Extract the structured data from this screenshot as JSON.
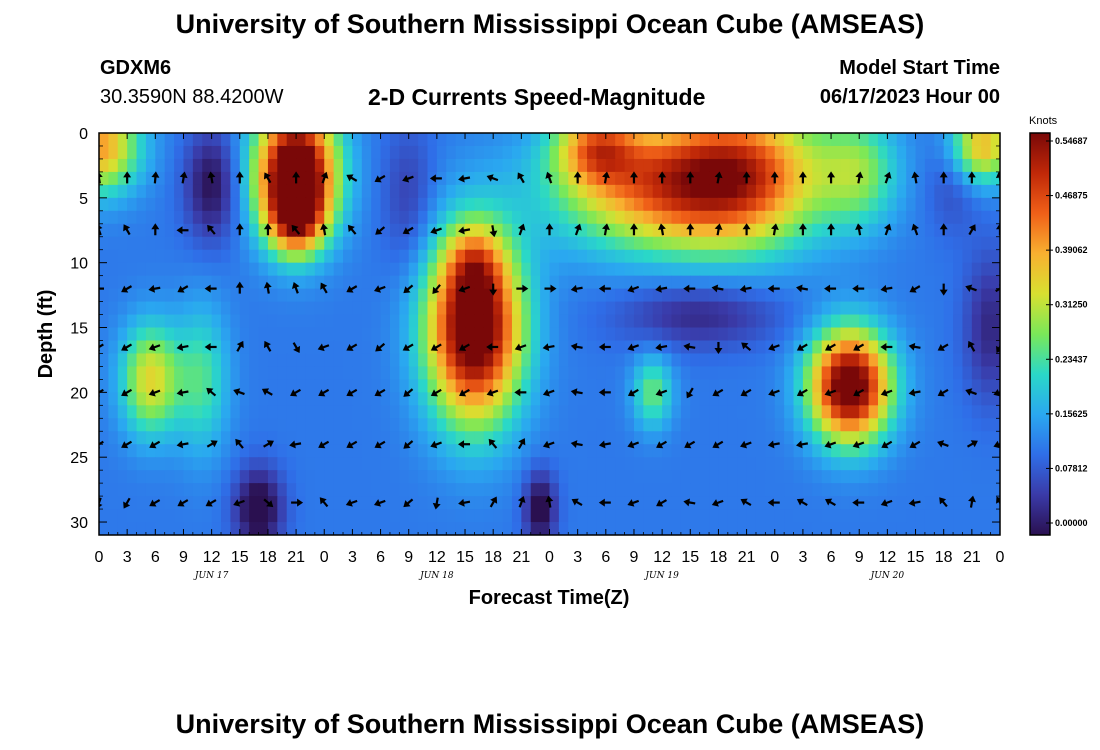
{
  "header": {
    "title": "University of Southern Mississippi Ocean Cube (AMSEAS)",
    "station": "GDXM6",
    "coordinates": "30.3590N  88.4200W",
    "subtitle": "2-D Currents Speed-Magnitude",
    "model_start_label": "Model Start Time",
    "model_start_value": "06/17/2023 Hour 00"
  },
  "footer": {
    "title": "University of Southern Mississippi Ocean Cube (AMSEAS)"
  },
  "colors": {
    "ramp": [
      "#2a1050",
      "#3a3aa8",
      "#2f6ee8",
      "#2aa8f0",
      "#2ad8c8",
      "#7ae858",
      "#d8e030",
      "#f8b030",
      "#f06018",
      "#c02808",
      "#7a0808"
    ]
  },
  "chart_data": {
    "type": "heatmap",
    "title": "2-D Currents Speed-Magnitude",
    "xlabel": "Forecast Time(Z)",
    "ylabel": "Depth (ft)",
    "units": "Knots",
    "xlim": [
      0,
      96
    ],
    "ylim": [
      31,
      0
    ],
    "x_tick_labels": [
      "0",
      "3",
      "6",
      "9",
      "12",
      "15",
      "18",
      "21",
      "0",
      "3",
      "6",
      "9",
      "12",
      "15",
      "18",
      "21",
      "0",
      "3",
      "6",
      "9",
      "12",
      "15",
      "18",
      "21",
      "0",
      "3",
      "6",
      "9",
      "12",
      "15",
      "18",
      "21",
      "0"
    ],
    "y_ticks": [
      0,
      5,
      10,
      15,
      20,
      25,
      30
    ],
    "day_labels": [
      {
        "text": "JUN 17",
        "hour": 12
      },
      {
        "text": "JUN 18",
        "hour": 36
      },
      {
        "text": "JUN 19",
        "hour": 60
      },
      {
        "text": "JUN 20",
        "hour": 84
      }
    ],
    "colorbar": {
      "label": "Knots",
      "min": 0,
      "max": 0.546875,
      "tick_labels": [
        "0.54687",
        "0.46875",
        "0.39062",
        "0.31250",
        "0.23437",
        "0.15625",
        "0.07812",
        "0.00000"
      ],
      "tick_values": [
        0.546875,
        0.46875,
        0.390625,
        0.3125,
        0.234375,
        0.15625,
        0.078125,
        0.0
      ]
    },
    "background_speed": 0.12,
    "speed_features": [
      {
        "t": 0,
        "d": 1,
        "st": 3,
        "sd": 2.5,
        "v": 0.28
      },
      {
        "t": 21,
        "d": 3,
        "st": 3,
        "sd": 3.5,
        "v": 0.52
      },
      {
        "t": 21,
        "d": 6.5,
        "st": 2,
        "sd": 2,
        "v": 0.24
      },
      {
        "t": 12,
        "d": 4,
        "st": 2,
        "sd": 3,
        "v": -0.12
      },
      {
        "t": 33,
        "d": 5,
        "st": 2,
        "sd": 4,
        "v": -0.06
      },
      {
        "t": 5.5,
        "d": 19,
        "st": 2.2,
        "sd": 3,
        "v": 0.22
      },
      {
        "t": 11,
        "d": 19,
        "st": 2,
        "sd": 4,
        "v": 0.12
      },
      {
        "t": 17,
        "d": 29,
        "st": 1.8,
        "sd": 2.2,
        "v": -0.15
      },
      {
        "t": 40,
        "d": 15,
        "st": 3.5,
        "sd": 5,
        "v": 0.5
      },
      {
        "t": 40,
        "d": 10,
        "st": 2,
        "sd": 2,
        "v": 0.1
      },
      {
        "t": 47,
        "d": 29,
        "st": 1.2,
        "sd": 2,
        "v": -0.14
      },
      {
        "t": 53,
        "d": 1,
        "st": 3,
        "sd": 2,
        "v": 0.22
      },
      {
        "t": 60,
        "d": 4,
        "st": 8,
        "sd": 3.5,
        "v": 0.3
      },
      {
        "t": 69,
        "d": 3,
        "st": 6,
        "sd": 4,
        "v": 0.26
      },
      {
        "t": 64,
        "d": 14,
        "st": 6,
        "sd": 1.8,
        "v": -0.09
      },
      {
        "t": 59,
        "d": 20,
        "st": 1.5,
        "sd": 2,
        "v": 0.14
      },
      {
        "t": 80,
        "d": 19.5,
        "st": 3,
        "sd": 3,
        "v": 0.48
      },
      {
        "t": 81,
        "d": 3,
        "st": 3,
        "sd": 3,
        "v": 0.14
      },
      {
        "t": 91,
        "d": 3,
        "st": 2,
        "sd": 3,
        "v": -0.06
      },
      {
        "t": 94,
        "d": 1,
        "st": 2.5,
        "sd": 2,
        "v": 0.26
      },
      {
        "t": 95,
        "d": 15,
        "st": 2,
        "sd": 4,
        "v": -0.09
      }
    ],
    "vector_times": [
      0,
      3,
      6,
      9,
      12,
      15,
      18,
      21,
      24,
      27,
      30,
      33,
      36,
      39,
      42,
      45,
      48,
      51,
      54,
      57,
      60,
      63,
      66,
      69,
      72,
      75,
      78,
      81,
      84,
      87,
      90,
      93,
      96
    ],
    "vector_depths": [
      0,
      3.5,
      7.5,
      12,
      16.5,
      20,
      24,
      28.5
    ],
    "vector_directions_deg": [
      [
        null,
        null,
        null,
        null,
        null,
        null,
        null,
        null,
        null,
        null,
        null,
        null,
        null,
        null,
        null,
        null,
        null,
        null,
        null,
        null,
        null,
        null,
        null,
        null,
        null,
        null,
        null,
        null,
        null,
        null,
        null,
        null,
        null
      ],
      [
        350,
        0,
        5,
        10,
        350,
        0,
        330,
        0,
        20,
        300,
        240,
        250,
        270,
        260,
        290,
        330,
        340,
        0,
        10,
        0,
        0,
        0,
        10,
        0,
        0,
        0,
        0,
        10,
        20,
        350,
        0,
        0,
        350
      ],
      [
        340,
        330,
        0,
        270,
        320,
        0,
        0,
        320,
        350,
        320,
        230,
        240,
        250,
        260,
        170,
        20,
        0,
        20,
        10,
        0,
        350,
        0,
        10,
        0,
        10,
        0,
        0,
        350,
        20,
        340,
        0,
        30,
        0
      ],
      [
        270,
        240,
        260,
        240,
        270,
        0,
        350,
        340,
        330,
        240,
        250,
        230,
        220,
        250,
        180,
        90,
        90,
        260,
        270,
        250,
        260,
        270,
        280,
        260,
        270,
        280,
        270,
        270,
        260,
        240,
        180,
        290,
        60
      ],
      [
        240,
        240,
        250,
        260,
        270,
        30,
        330,
        150,
        250,
        240,
        230,
        240,
        240,
        240,
        270,
        250,
        260,
        280,
        270,
        250,
        260,
        280,
        180,
        310,
        250,
        240,
        240,
        240,
        270,
        280,
        240,
        330,
        210
      ],
      [
        240,
        240,
        250,
        260,
        310,
        290,
        300,
        240,
        240,
        240,
        240,
        230,
        240,
        240,
        250,
        270,
        250,
        280,
        270,
        240,
        250,
        210,
        240,
        240,
        250,
        240,
        250,
        240,
        250,
        260,
        240,
        290,
        250
      ],
      [
        240,
        240,
        240,
        260,
        60,
        320,
        60,
        260,
        240,
        240,
        240,
        230,
        250,
        270,
        320,
        30,
        250,
        280,
        260,
        250,
        240,
        240,
        240,
        250,
        260,
        260,
        250,
        250,
        240,
        240,
        290,
        60,
        250
      ],
      [
        200,
        210,
        240,
        240,
        240,
        250,
        130,
        90,
        320,
        250,
        250,
        230,
        190,
        260,
        30,
        20,
        350,
        300,
        270,
        250,
        240,
        280,
        250,
        300,
        270,
        300,
        300,
        270,
        250,
        260,
        320,
        10,
        330
      ]
    ]
  }
}
